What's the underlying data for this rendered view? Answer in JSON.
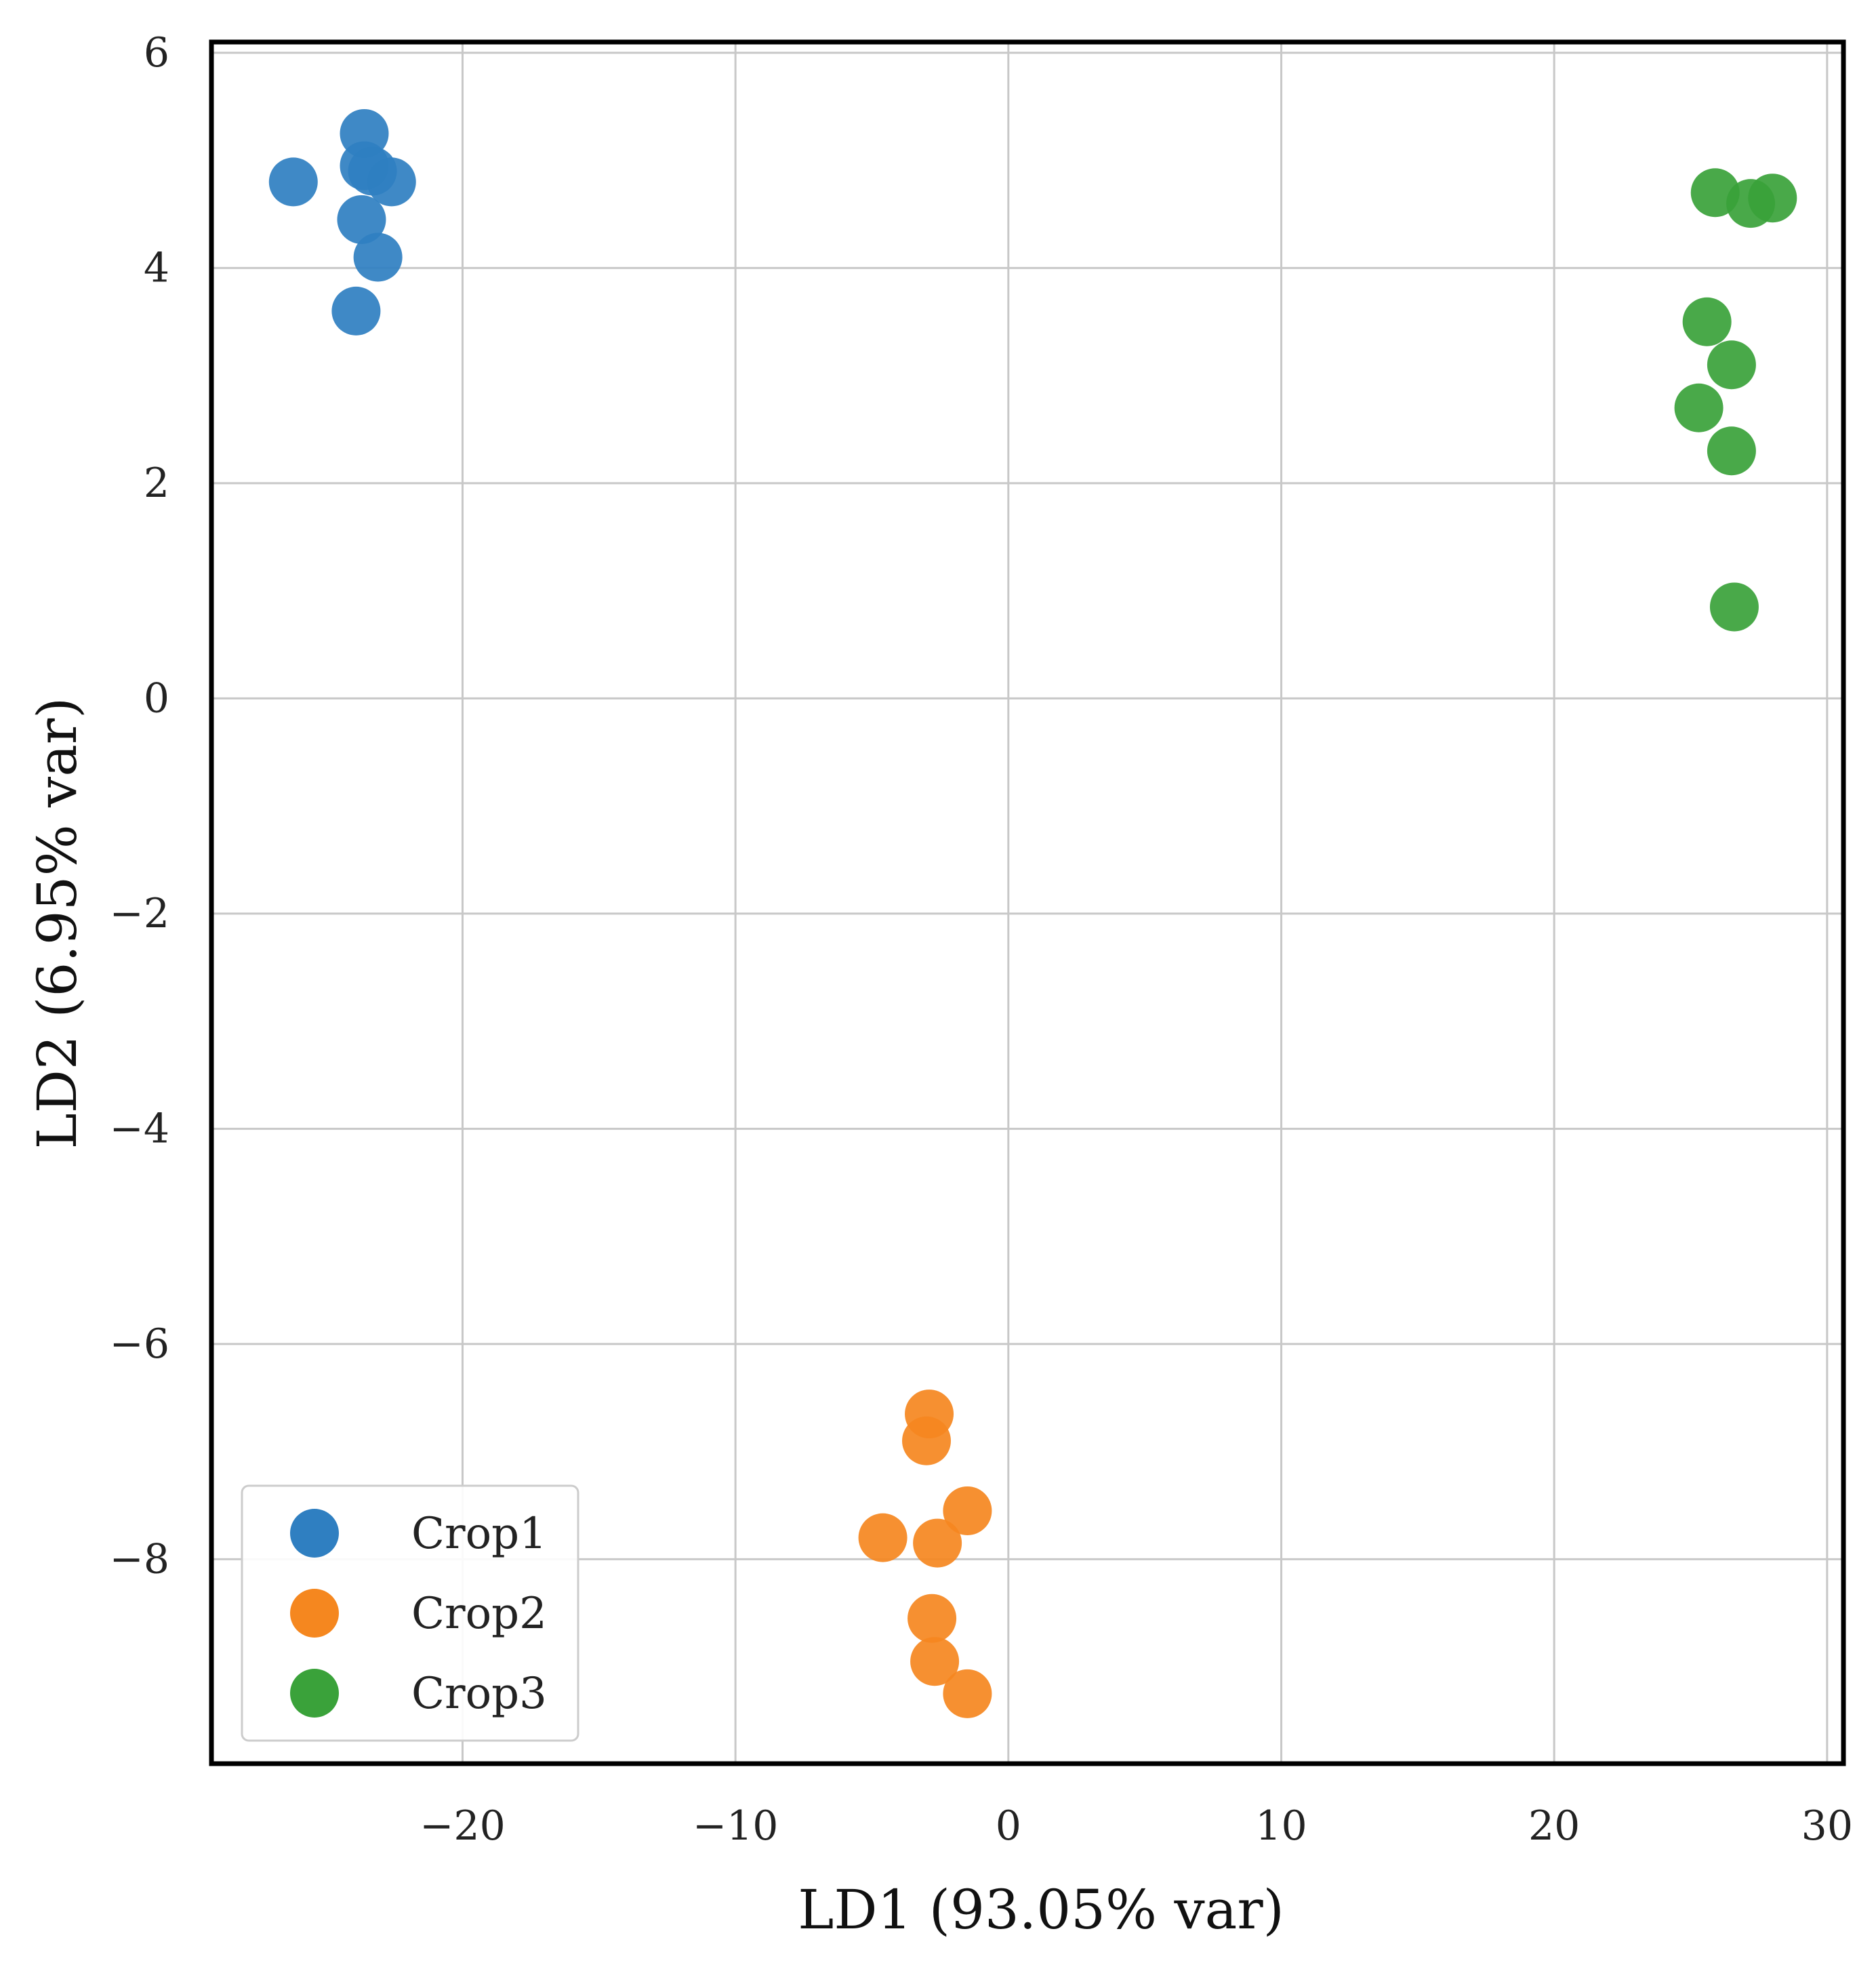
{
  "chart_data": {
    "type": "scatter",
    "title": "",
    "xlabel": "LD1 (93.05% var)",
    "ylabel": "LD2 (6.95% var)",
    "xlim": [
      -29.2,
      30.6
    ],
    "ylim": [
      -9.9,
      6.1
    ],
    "xticks": [
      -20,
      -10,
      0,
      10,
      20,
      30
    ],
    "xtick_labels": [
      "−20",
      "−10",
      "0",
      "10",
      "20",
      "30"
    ],
    "yticks": [
      -8,
      -6,
      -4,
      -2,
      0,
      2,
      4,
      6
    ],
    "ytick_labels": [
      "−8",
      "−6",
      "−4",
      "−2",
      "0",
      "2",
      "4",
      "6"
    ],
    "grid": true,
    "legend_position": "bottom-left",
    "series": [
      {
        "name": "Crop1",
        "color": "#2f7fc1",
        "points": [
          {
            "x": -26.2,
            "y": 4.8
          },
          {
            "x": -23.6,
            "y": 5.25
          },
          {
            "x": -23.6,
            "y": 4.95
          },
          {
            "x": -23.3,
            "y": 4.9
          },
          {
            "x": -22.6,
            "y": 4.8
          },
          {
            "x": -23.7,
            "y": 4.45
          },
          {
            "x": -23.1,
            "y": 4.1
          },
          {
            "x": -23.9,
            "y": 3.6
          }
        ]
      },
      {
        "name": "Crop2",
        "color": "#f5871f",
        "points": [
          {
            "x": -2.9,
            "y": -6.65
          },
          {
            "x": -3.0,
            "y": -6.9
          },
          {
            "x": -1.5,
            "y": -7.55
          },
          {
            "x": -4.6,
            "y": -7.8
          },
          {
            "x": -2.6,
            "y": -7.85
          },
          {
            "x": -2.8,
            "y": -8.55
          },
          {
            "x": -2.7,
            "y": -8.95
          },
          {
            "x": -1.5,
            "y": -9.25
          }
        ]
      },
      {
        "name": "Crop3",
        "color": "#3aa23a",
        "points": [
          {
            "x": 25.9,
            "y": 4.7
          },
          {
            "x": 27.2,
            "y": 4.6
          },
          {
            "x": 28.0,
            "y": 4.65
          },
          {
            "x": 25.6,
            "y": 3.5
          },
          {
            "x": 26.5,
            "y": 3.1
          },
          {
            "x": 25.3,
            "y": 2.7
          },
          {
            "x": 26.5,
            "y": 2.3
          },
          {
            "x": 26.6,
            "y": 0.85
          }
        ]
      }
    ]
  }
}
